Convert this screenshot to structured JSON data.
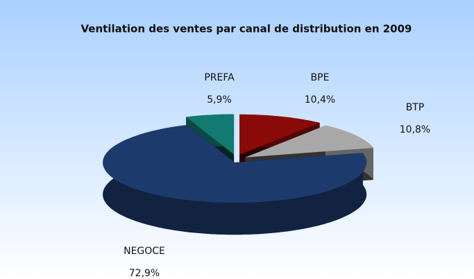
{
  "chart_data": {
    "type": "pie3d",
    "title": "Ventilation des ventes par canal de distribution en 2009",
    "categories": [
      "BPE",
      "BTP",
      "NEGOCE",
      "PREFA"
    ],
    "values": [
      10.4,
      10.8,
      72.9,
      5.9
    ],
    "value_labels": [
      "10,4%",
      "10,8%",
      "72,9%",
      "5,9%"
    ],
    "colors": [
      "#8a0a0a",
      "#a8a8a8",
      "#1d3a6c",
      "#127a70"
    ]
  }
}
